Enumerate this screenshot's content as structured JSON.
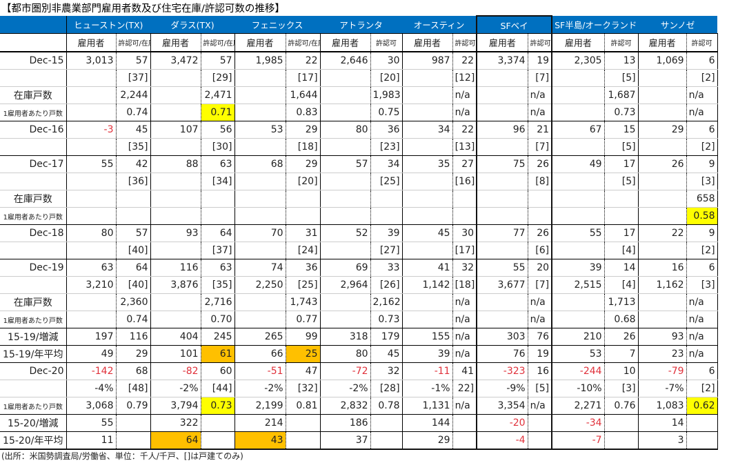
{
  "title": "【都市圏別非農業部門雇用者数及び住宅在庫/許認可数の推移】",
  "cities": [
    "ヒューストン(TX)",
    "ダラス(TX)",
    "フェニックス",
    "アトランタ",
    "オースティン",
    "SFベイ",
    "SF半島/オークランド",
    "サンノゼ"
  ],
  "subheaders": [
    "雇用者",
    "許認可/在庫",
    "雇用者",
    "許認可/在庫",
    "雇用者",
    "許認可/在庫",
    "雇用者",
    "許認可",
    "雇用者",
    "許認可",
    "雇用者",
    "許認可",
    "雇用者",
    "許認可",
    "雇用者",
    "許認可"
  ],
  "rows": [
    [
      "Dec-15",
      "3,013",
      "57",
      "3,472",
      "57",
      "1,985",
      "22",
      "2,646",
      "30",
      "987",
      "22",
      "3,374",
      "19",
      "2,305",
      "13",
      "1,069",
      "6"
    ],
    [
      "",
      "",
      "[37]",
      "",
      "[29]",
      "",
      "[17]",
      "",
      "[20]",
      "",
      "[12]",
      "",
      "[7]",
      "",
      "[5]",
      "",
      "[2]"
    ],
    [
      "在庫戸数",
      "",
      "2,244",
      "",
      "2,471",
      "",
      "1,644",
      "",
      "1,983",
      "",
      "n/a",
      "",
      "n/a",
      "",
      "1,687",
      "",
      "n/a"
    ],
    [
      "1雇用者あたり戸数",
      "",
      "0.74",
      "",
      "0.71",
      "",
      "0.83",
      "",
      "0.75",
      "",
      "n/a",
      "",
      "n/a",
      "",
      "0.73",
      "",
      "n/a"
    ],
    [
      "Dec-16",
      "-3",
      "45",
      "107",
      "56",
      "53",
      "29",
      "80",
      "36",
      "34",
      "22",
      "96",
      "21",
      "67",
      "15",
      "29",
      "6"
    ],
    [
      "",
      "",
      "[35]",
      "",
      "[30]",
      "",
      "[18]",
      "",
      "[23]",
      "",
      "[13]",
      "",
      "[7]",
      "",
      "[5]",
      "",
      "[2]"
    ],
    [
      "Dec-17",
      "55",
      "42",
      "88",
      "63",
      "68",
      "29",
      "57",
      "34",
      "35",
      "27",
      "75",
      "26",
      "49",
      "17",
      "26",
      "9"
    ],
    [
      "",
      "",
      "[36]",
      "",
      "[34]",
      "",
      "[20]",
      "",
      "[25]",
      "",
      "[16]",
      "",
      "[8]",
      "",
      "[5]",
      "",
      "[3]"
    ],
    [
      "在庫戸数",
      "",
      "",
      "",
      "",
      "",
      "",
      "",
      "",
      "",
      "",
      "",
      "",
      "",
      "",
      "",
      "658"
    ],
    [
      "1雇用者あたり戸数",
      "",
      "",
      "",
      "",
      "",
      "",
      "",
      "",
      "",
      "",
      "",
      "",
      "",
      "",
      "",
      "0.58"
    ],
    [
      "Dec-18",
      "80",
      "57",
      "93",
      "64",
      "70",
      "31",
      "52",
      "39",
      "45",
      "30",
      "77",
      "26",
      "55",
      "17",
      "22",
      "9"
    ],
    [
      "",
      "",
      "[40]",
      "",
      "[37]",
      "",
      "[24]",
      "",
      "[27]",
      "",
      "[17]",
      "",
      "[6]",
      "",
      "[4]",
      "",
      "[2]"
    ],
    [
      "Dec-19",
      "63",
      "64",
      "116",
      "63",
      "74",
      "36",
      "69",
      "33",
      "41",
      "32",
      "55",
      "20",
      "39",
      "14",
      "16",
      "6"
    ],
    [
      "",
      "3,210",
      "[40]",
      "3,876",
      "[35]",
      "2,250",
      "[25]",
      "2,964",
      "[26]",
      "1,142",
      "[18]",
      "3,677",
      "[7]",
      "2,515",
      "[4]",
      "1,162",
      "[3]"
    ],
    [
      "在庫戸数",
      "",
      "2,360",
      "",
      "2,716",
      "",
      "1,743",
      "",
      "2,162",
      "",
      "n/a",
      "",
      "n/a",
      "",
      "1,713",
      "",
      "n/a"
    ],
    [
      "1雇用者あたり戸数",
      "",
      "0.74",
      "",
      "0.70",
      "",
      "0.77",
      "",
      "0.73",
      "",
      "n/a",
      "",
      "n/a",
      "",
      "0.68",
      "",
      "n/a"
    ],
    [
      "15-19/増減",
      "197",
      "116",
      "404",
      "245",
      "265",
      "99",
      "318",
      "179",
      "155",
      "n/a",
      "303",
      "76",
      "210",
      "26",
      "93",
      "n/a"
    ],
    [
      "15-19/年平均",
      "49",
      "29",
      "101",
      "61",
      "66",
      "25",
      "80",
      "45",
      "39",
      "n/a",
      "76",
      "19",
      "53",
      "7",
      "23",
      "n/a"
    ],
    [
      "Dec-20",
      "-142",
      "68",
      "-82",
      "60",
      "-51",
      "47",
      "-72",
      "32",
      "-11",
      "41",
      "-323",
      "16",
      "-244",
      "10",
      "-79",
      "6"
    ],
    [
      "",
      "-4%",
      "[48]",
      "-2%",
      "[44]",
      "-2%",
      "[32]",
      "-2%",
      "[28]",
      "-1%",
      "22]",
      "-9%",
      "[5]",
      "-10%",
      "[3]",
      "-7%",
      "[2]"
    ],
    [
      "1雇用者あたり戸数",
      "3,068",
      "0.79",
      "3,794",
      "0.73",
      "2,199",
      "0.81",
      "2,832",
      "0.78",
      "1,131",
      "n/a",
      "3,354",
      "n/a",
      "2,271",
      "0.76",
      "1,083",
      "0.62"
    ],
    [
      "15-20/増減",
      "55",
      "",
      "322",
      "",
      "214",
      "",
      "186",
      "",
      "144",
      "",
      "-20",
      "",
      "-34",
      "",
      "14",
      ""
    ],
    [
      "15-20/年平均",
      "11",
      "",
      "64",
      "",
      "43",
      "",
      "37",
      "",
      "29",
      "",
      "-4",
      "",
      "-7",
      "",
      "3",
      ""
    ]
  ],
  "group_end_rows": [
    3,
    5,
    9,
    11,
    15,
    16,
    17,
    20,
    21,
    22
  ],
  "highlights": [
    {
      "row": 3,
      "col": 4,
      "color": "#ffff00"
    },
    {
      "row": 9,
      "col": 16,
      "color": "#ffff00"
    },
    {
      "row": 17,
      "col": 4,
      "color": "#ffc000"
    },
    {
      "row": 17,
      "col": 6,
      "color": "#ffc000"
    },
    {
      "row": 20,
      "col": 4,
      "color": "#ffff00"
    },
    {
      "row": 20,
      "col": 16,
      "color": "#ffff00"
    },
    {
      "row": 22,
      "col": 3,
      "color": "#ffc000"
    },
    {
      "row": 22,
      "col": 5,
      "color": "#ffc000"
    }
  ],
  "note": "(出所：米国勢調査局/労働省、単位：千人/千戸、[]は戸建てのみ)"
}
